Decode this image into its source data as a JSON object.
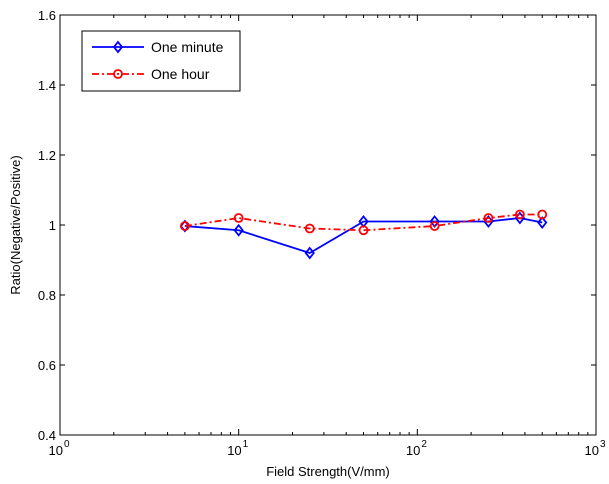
{
  "chart_data": {
    "type": "line",
    "title": "",
    "xlabel": "Field Strength(V/mm)",
    "ylabel": "Ratio(Negative/Positive)",
    "xscale": "log",
    "xlim": [
      1,
      1000
    ],
    "ylim": [
      0.4,
      1.6
    ],
    "x_ticks": [
      {
        "value": 1,
        "base": "10",
        "exp": "0"
      },
      {
        "value": 10,
        "base": "10",
        "exp": "1"
      },
      {
        "value": 100,
        "base": "10",
        "exp": "2"
      },
      {
        "value": 1000,
        "base": "10",
        "exp": "3"
      }
    ],
    "y_ticks": [
      {
        "value": 0.4,
        "label": "0.4"
      },
      {
        "value": 0.6,
        "label": "0.6"
      },
      {
        "value": 0.8,
        "label": "0.8"
      },
      {
        "value": 1.0,
        "label": "1"
      },
      {
        "value": 1.2,
        "label": "1.2"
      },
      {
        "value": 1.4,
        "label": "1.4"
      },
      {
        "value": 1.6,
        "label": "1.6"
      }
    ],
    "grid": false,
    "legend_position": "top-left",
    "series": [
      {
        "name": "One minute",
        "color": "#0000ff",
        "marker": "diamond",
        "line_style": "solid",
        "x": [
          5,
          10,
          25,
          50,
          125,
          250,
          375,
          500
        ],
        "y": [
          0.997,
          0.985,
          0.92,
          1.01,
          1.01,
          1.01,
          1.02,
          1.007
        ]
      },
      {
        "name": "One hour",
        "color": "#ff0000",
        "marker": "circle",
        "line_style": "dash-dot",
        "x": [
          5,
          10,
          25,
          50,
          125,
          250,
          375,
          500
        ],
        "y": [
          0.997,
          1.02,
          0.99,
          0.985,
          0.997,
          1.02,
          1.03,
          1.03
        ]
      }
    ]
  }
}
